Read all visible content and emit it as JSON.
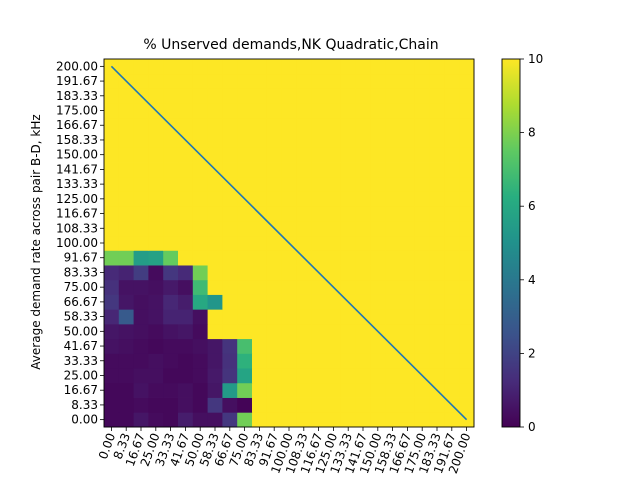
{
  "chart_data": {
    "type": "heatmap",
    "title": "% Unserved demands,NK Quadratic,Chain",
    "xlabel": "",
    "ylabel": "Average demand rate across pair B-D, kHz",
    "x_ticks": [
      "0.00",
      "8.33",
      "16.67",
      "25.00",
      "33.33",
      "41.67",
      "50.00",
      "58.33",
      "66.67",
      "75.00",
      "83.33",
      "91.67",
      "100.00",
      "108.33",
      "116.67",
      "125.00",
      "133.33",
      "141.67",
      "150.00",
      "158.33",
      "166.67",
      "175.00",
      "183.33",
      "191.67",
      "200.00"
    ],
    "y_ticks": [
      "0.00",
      "8.33",
      "16.67",
      "25.00",
      "33.33",
      "41.67",
      "50.00",
      "58.33",
      "66.67",
      "75.00",
      "83.33",
      "91.67",
      "100.00",
      "108.33",
      "116.67",
      "125.00",
      "133.33",
      "141.67",
      "150.00",
      "158.33",
      "166.67",
      "175.00",
      "183.33",
      "191.67",
      "200.00"
    ],
    "colorbar": {
      "colormap": "viridis",
      "min": 0,
      "max": 10,
      "ticks": [
        "0",
        "2",
        "4",
        "6",
        "8",
        "10"
      ]
    },
    "values": [
      [
        0.2,
        0.2,
        0.6,
        0.3,
        0.2,
        0.8,
        0.4,
        0.4,
        1.6,
        7.8,
        10,
        10,
        10,
        10,
        10,
        10,
        10,
        10,
        10,
        10,
        10,
        10,
        10,
        10,
        10
      ],
      [
        0.2,
        0.2,
        0.3,
        0.2,
        0.2,
        0.4,
        0.2,
        1.6,
        0.4,
        0.1,
        10,
        10,
        10,
        10,
        10,
        10,
        10,
        10,
        10,
        10,
        10,
        10,
        10,
        10,
        10
      ],
      [
        0.2,
        0.2,
        0.5,
        0.3,
        0.3,
        0.4,
        0.2,
        0.6,
        5.4,
        7.8,
        10,
        10,
        10,
        10,
        10,
        10,
        10,
        10,
        10,
        10,
        10,
        10,
        10,
        10,
        10
      ],
      [
        0.3,
        0.3,
        0.4,
        0.4,
        0.2,
        0.2,
        0.3,
        0.7,
        1.5,
        5.8,
        10,
        10,
        10,
        10,
        10,
        10,
        10,
        10,
        10,
        10,
        10,
        10,
        10,
        10,
        10
      ],
      [
        0.3,
        0.3,
        0.3,
        0.4,
        0.3,
        0.2,
        0.3,
        0.6,
        1.4,
        6.4,
        10,
        10,
        10,
        10,
        10,
        10,
        10,
        10,
        10,
        10,
        10,
        10,
        10,
        10,
        10
      ],
      [
        0.5,
        0.4,
        0.3,
        0.2,
        0.3,
        0.3,
        0.4,
        0.6,
        1.5,
        7.0,
        10,
        10,
        10,
        10,
        10,
        10,
        10,
        10,
        10,
        10,
        10,
        10,
        10,
        10,
        10
      ],
      [
        0.6,
        0.5,
        0.4,
        0.3,
        0.5,
        0.6,
        0.3,
        10,
        10,
        10,
        10,
        10,
        10,
        10,
        10,
        10,
        10,
        10,
        10,
        10,
        10,
        10,
        10,
        10,
        10
      ],
      [
        1.1,
        2.8,
        0.4,
        0.5,
        1.0,
        1.0,
        0.4,
        10,
        10,
        10,
        10,
        10,
        10,
        10,
        10,
        10,
        10,
        10,
        10,
        10,
        10,
        10,
        10,
        10,
        10
      ],
      [
        1.6,
        0.6,
        0.4,
        0.5,
        1.1,
        0.8,
        6.0,
        5.2,
        10,
        10,
        10,
        10,
        10,
        10,
        10,
        10,
        10,
        10,
        10,
        10,
        10,
        10,
        10,
        10,
        10
      ],
      [
        1.4,
        0.5,
        0.5,
        0.4,
        0.7,
        0.4,
        6.8,
        10,
        10,
        10,
        10,
        10,
        10,
        10,
        10,
        10,
        10,
        10,
        10,
        10,
        10,
        10,
        10,
        10,
        10
      ],
      [
        1.2,
        1.0,
        1.8,
        0.3,
        1.6,
        1.2,
        7.8,
        10,
        10,
        10,
        10,
        10,
        10,
        10,
        10,
        10,
        10,
        10,
        10,
        10,
        10,
        10,
        10,
        10,
        10
      ],
      [
        7.8,
        7.8,
        5.5,
        5.7,
        7.6,
        10,
        10,
        10,
        10,
        10,
        10,
        10,
        10,
        10,
        10,
        10,
        10,
        10,
        10,
        10,
        10,
        10,
        10,
        10,
        10
      ],
      [
        10,
        10,
        10,
        10,
        10,
        10,
        10,
        10,
        10,
        10,
        10,
        10,
        10,
        10,
        10,
        10,
        10,
        10,
        10,
        10,
        10,
        10,
        10,
        10,
        10
      ],
      [
        10,
        10,
        10,
        10,
        10,
        10,
        10,
        10,
        10,
        10,
        10,
        10,
        10,
        10,
        10,
        10,
        10,
        10,
        10,
        10,
        10,
        10,
        10,
        10,
        10
      ],
      [
        10,
        10,
        10,
        10,
        10,
        10,
        10,
        10,
        10,
        10,
        10,
        10,
        10,
        10,
        10,
        10,
        10,
        10,
        10,
        10,
        10,
        10,
        10,
        10,
        10
      ],
      [
        10,
        10,
        10,
        10,
        10,
        10,
        10,
        10,
        10,
        10,
        10,
        10,
        10,
        10,
        10,
        10,
        10,
        10,
        10,
        10,
        10,
        10,
        10,
        10,
        10
      ],
      [
        10,
        10,
        10,
        10,
        10,
        10,
        10,
        10,
        10,
        10,
        10,
        10,
        10,
        10,
        10,
        10,
        10,
        10,
        10,
        10,
        10,
        10,
        10,
        10,
        10
      ],
      [
        10,
        10,
        10,
        10,
        10,
        10,
        10,
        10,
        10,
        10,
        10,
        10,
        10,
        10,
        10,
        10,
        10,
        10,
        10,
        10,
        10,
        10,
        10,
        10,
        10
      ],
      [
        10,
        10,
        10,
        10,
        10,
        10,
        10,
        10,
        10,
        10,
        10,
        10,
        10,
        10,
        10,
        10,
        10,
        10,
        10,
        10,
        10,
        10,
        10,
        10,
        10
      ],
      [
        10,
        10,
        10,
        10,
        10,
        10,
        10,
        10,
        10,
        10,
        10,
        10,
        10,
        10,
        10,
        10,
        10,
        10,
        10,
        10,
        10,
        10,
        10,
        10,
        10
      ],
      [
        10,
        10,
        10,
        10,
        10,
        10,
        10,
        10,
        10,
        10,
        10,
        10,
        10,
        10,
        10,
        10,
        10,
        10,
        10,
        10,
        10,
        10,
        10,
        10,
        10
      ],
      [
        10,
        10,
        10,
        10,
        10,
        10,
        10,
        10,
        10,
        10,
        10,
        10,
        10,
        10,
        10,
        10,
        10,
        10,
        10,
        10,
        10,
        10,
        10,
        10,
        10
      ],
      [
        10,
        10,
        10,
        10,
        10,
        10,
        10,
        10,
        10,
        10,
        10,
        10,
        10,
        10,
        10,
        10,
        10,
        10,
        10,
        10,
        10,
        10,
        10,
        10,
        10
      ],
      [
        10,
        10,
        10,
        10,
        10,
        10,
        10,
        10,
        10,
        10,
        10,
        10,
        10,
        10,
        10,
        10,
        10,
        10,
        10,
        10,
        10,
        10,
        10,
        10,
        10
      ],
      [
        10,
        10,
        10,
        10,
        10,
        10,
        10,
        10,
        10,
        10,
        10,
        10,
        10,
        10,
        10,
        10,
        10,
        10,
        10,
        10,
        10,
        10,
        10,
        10,
        10
      ]
    ],
    "values_row_order": "bottom-to-top (row 0 = y 0.00)",
    "overlay_line": {
      "from": {
        "x": "200.00",
        "y": "0.00"
      },
      "to": {
        "x": "0.00",
        "y": "200.00"
      },
      "color": "#1f77b4"
    },
    "grid": false
  }
}
